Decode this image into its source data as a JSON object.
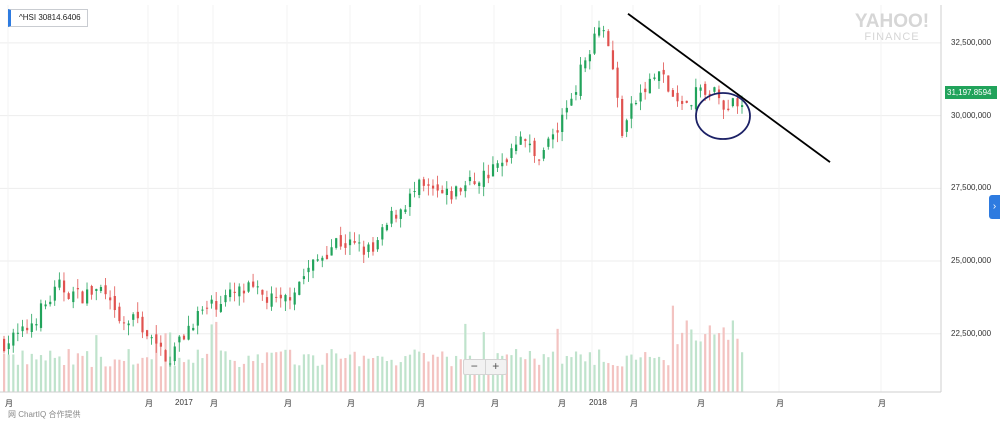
{
  "legend": {
    "symbol": "^HSI",
    "value": "30814.6406"
  },
  "logo": {
    "line1": "YAHOO!",
    "line2": "FINANCE"
  },
  "price_tag": "31,197.8594",
  "zoom": {
    "minus": "−",
    "plus": "+"
  },
  "side_button": "›",
  "attribution": "网 ChartIQ 合作提供",
  "colors": {
    "up": "#21a35b",
    "down": "#e0524f",
    "trendline": "#000000",
    "circle": "#1c2166",
    "accent": "#2e7be0"
  },
  "chart_data": {
    "type": "candlestick",
    "title": "",
    "xlabel": "",
    "ylabel": "",
    "ylim": [
      20500000,
      33800000
    ],
    "y_ticks": [
      "32,500,000",
      "30,000,000",
      "27,500,000",
      "25,000,000",
      "22,500,000"
    ],
    "x_ticks": [
      "月",
      "月",
      "2017",
      "月",
      "月",
      "月",
      "月",
      "月",
      "月",
      "2018",
      "月",
      "月",
      "月",
      "月"
    ],
    "price_path": [
      [
        0,
        22200000
      ],
      [
        0.02,
        22500000
      ],
      [
        0.04,
        23300000
      ],
      [
        0.06,
        24100000
      ],
      [
        0.08,
        23800000
      ],
      [
        0.105,
        24000000
      ],
      [
        0.125,
        22800000
      ],
      [
        0.145,
        23000000
      ],
      [
        0.165,
        22000000
      ],
      [
        0.18,
        21700000
      ],
      [
        0.205,
        23000000
      ],
      [
        0.235,
        23700000
      ],
      [
        0.265,
        24000000
      ],
      [
        0.3,
        23500000
      ],
      [
        0.33,
        24700000
      ],
      [
        0.36,
        25700000
      ],
      [
        0.4,
        25300000
      ],
      [
        0.42,
        26500000
      ],
      [
        0.45,
        27500000
      ],
      [
        0.48,
        27200000
      ],
      [
        0.5,
        27600000
      ],
      [
        0.54,
        28300000
      ],
      [
        0.56,
        29500000
      ],
      [
        0.575,
        28500000
      ],
      [
        0.6,
        29500000
      ],
      [
        0.625,
        31500000
      ],
      [
        0.645,
        33300000
      ],
      [
        0.655,
        32500000
      ],
      [
        0.67,
        29500000
      ],
      [
        0.685,
        30500000
      ],
      [
        0.71,
        31500000
      ],
      [
        0.73,
        30300000
      ],
      [
        0.76,
        31000000
      ],
      [
        0.78,
        30400000
      ],
      [
        0.8,
        30600000
      ]
    ],
    "volume_shape": "random daily bars, median about 40% of panel height, tallest near 2018",
    "trendline": {
      "from": [
        "2018 peak",
        33500000
      ],
      "to": [
        "projection",
        28400000
      ]
    },
    "circle_annotation": "highlights recent consolidation near the trendline"
  }
}
